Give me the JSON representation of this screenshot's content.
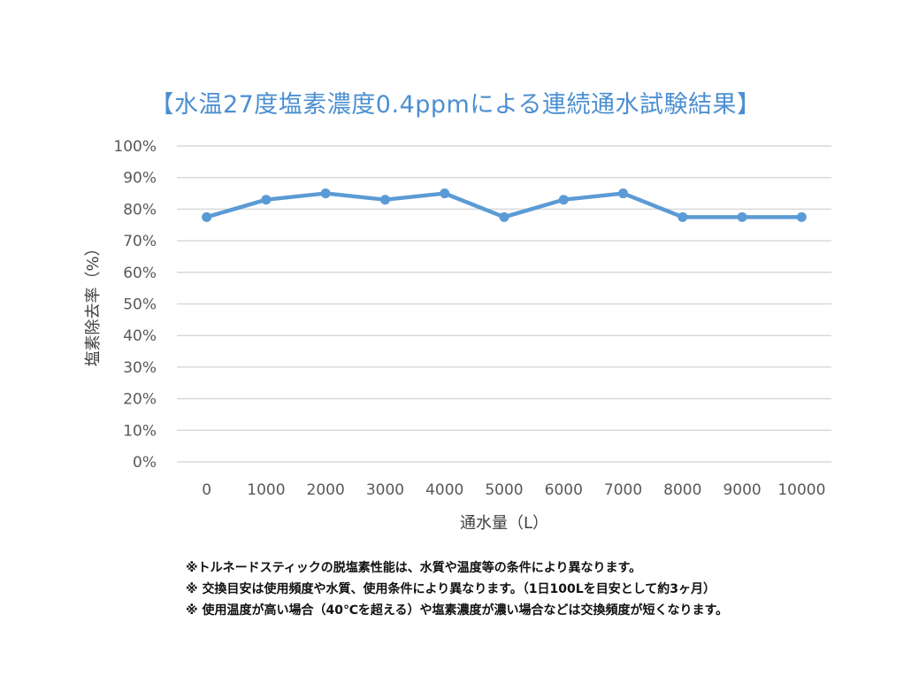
{
  "chart_data": {
    "type": "line",
    "title": "【水温27度塩素濃度0.4ppmによる連続通水試験結果】",
    "xlabel": "通水量（L）",
    "ylabel": "塩素除去率（%）",
    "categories": [
      "0",
      "1000",
      "2000",
      "3000",
      "4000",
      "5000",
      "6000",
      "7000",
      "8000",
      "9000",
      "10000"
    ],
    "values": [
      77.5,
      83,
      85,
      83,
      85,
      77.5,
      83,
      85,
      77.5,
      77.5,
      77.5
    ],
    "yticks": [
      "0%",
      "10%",
      "20%",
      "30%",
      "40%",
      "50%",
      "60%",
      "70%",
      "80%",
      "90%",
      "100%"
    ],
    "ylim": [
      0,
      100
    ],
    "grid": true,
    "line_color": "#5b9bd5",
    "title_color": "#4b8fd1"
  },
  "notes": [
    "※トルネードスティックの脱塩素性能は、水質や温度等の条件により異なります。",
    "※ 交換目安は使用頻度や水質、使用条件により異なります。（1日100Lを目安として約3ヶ月）",
    "※ 使用温度が高い場合（40℃を超える）や塩素濃度が濃い場合などは交換頻度が短くなります。"
  ]
}
